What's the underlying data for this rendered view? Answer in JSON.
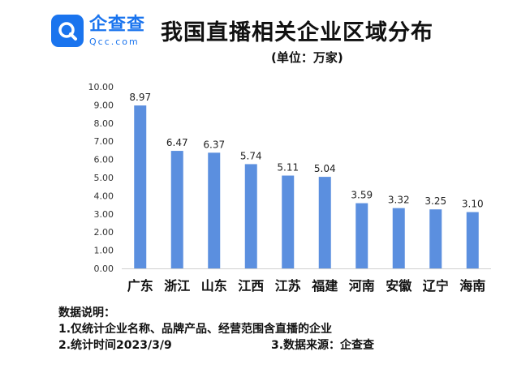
{
  "header": {
    "logo_cn": "企查查",
    "logo_en": "Qcc.com",
    "title": "我国直播相关企业区域分布",
    "unit": "(单位：万家)"
  },
  "chart_data": {
    "type": "bar",
    "title": "我国直播相关企业区域分布",
    "unit": "(单位：万家)",
    "categories": [
      "广东",
      "浙江",
      "山东",
      "江西",
      "江苏",
      "福建",
      "河南",
      "安徽",
      "辽宁",
      "海南"
    ],
    "values": [
      8.97,
      6.47,
      6.37,
      5.74,
      5.11,
      5.04,
      3.59,
      3.32,
      3.25,
      3.1
    ],
    "ylim": [
      0,
      10
    ],
    "yticks": [
      "0.00",
      "1.00",
      "2.00",
      "3.00",
      "4.00",
      "5.00",
      "6.00",
      "7.00",
      "8.00",
      "9.00",
      "10.00"
    ],
    "grid": false,
    "bar_color": "#5b8fdf"
  },
  "notes": {
    "heading": "数据说明：",
    "line1": "1.仅统计企业名称、品牌产品、经营范围含直播的企业",
    "line2a": "2.统计时间2023/3/9",
    "line2b": "3.数据来源：企查查"
  }
}
